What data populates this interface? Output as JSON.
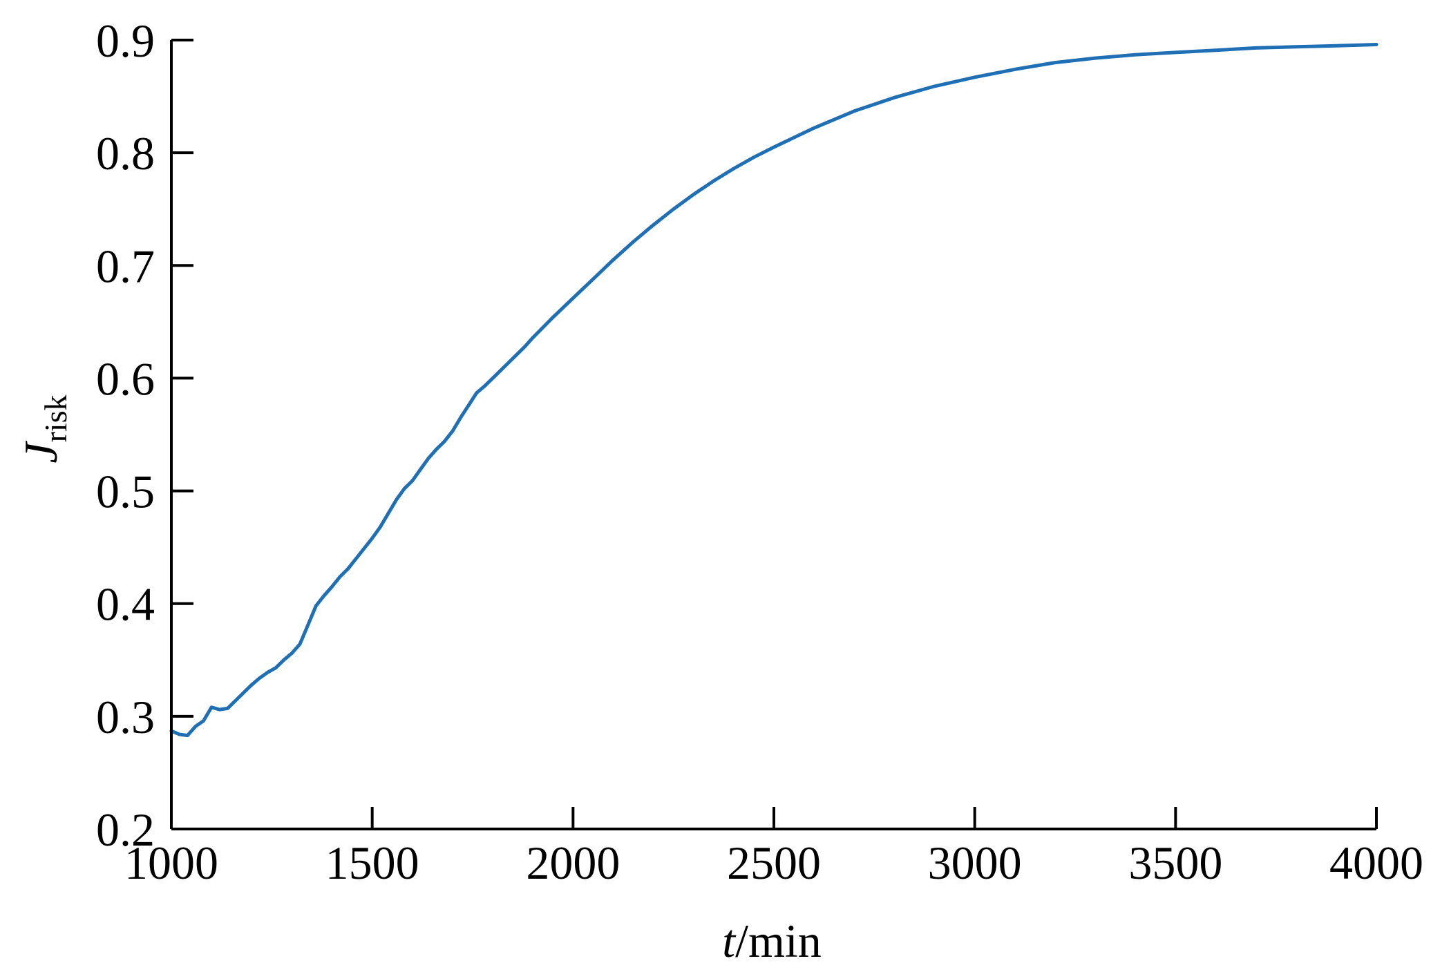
{
  "chart_data": {
    "type": "line",
    "xlabel": {
      "italic": "t",
      "rest": "/min"
    },
    "ylabel": {
      "italic": "J",
      "sub": "risk"
    },
    "xlim": [
      1000,
      4000
    ],
    "ylim": [
      0.2,
      0.9
    ],
    "x_ticks": [
      1000,
      1500,
      2000,
      2500,
      3000,
      3500,
      4000
    ],
    "x_tick_labels": [
      "1000",
      "1500",
      "2000",
      "2500",
      "3000",
      "3500",
      "4000"
    ],
    "y_ticks": [
      0.2,
      0.3,
      0.4,
      0.5,
      0.6,
      0.7,
      0.8,
      0.9
    ],
    "y_tick_labels": [
      "0.2",
      "0.3",
      "0.4",
      "0.5",
      "0.6",
      "0.7",
      "0.8",
      "0.9"
    ],
    "grid": false,
    "legend": "none",
    "series": [
      {
        "color": "#1f6fb5",
        "x": [
          1000,
          1020,
          1040,
          1060,
          1080,
          1100,
          1120,
          1140,
          1160,
          1180,
          1200,
          1220,
          1240,
          1260,
          1280,
          1300,
          1320,
          1340,
          1360,
          1380,
          1400,
          1420,
          1440,
          1460,
          1480,
          1500,
          1520,
          1540,
          1560,
          1580,
          1600,
          1620,
          1640,
          1660,
          1680,
          1700,
          1720,
          1740,
          1760,
          1780,
          1800,
          1820,
          1840,
          1860,
          1880,
          1900,
          1950,
          2000,
          2050,
          2100,
          2150,
          2200,
          2250,
          2300,
          2350,
          2400,
          2450,
          2500,
          2600,
          2700,
          2800,
          2900,
          3000,
          3100,
          3200,
          3300,
          3400,
          3500,
          3600,
          3700,
          3800,
          3900,
          4000
        ],
        "y": [
          0.287,
          0.284,
          0.283,
          0.291,
          0.296,
          0.308,
          0.306,
          0.307,
          0.314,
          0.321,
          0.328,
          0.334,
          0.339,
          0.343,
          0.35,
          0.356,
          0.364,
          0.381,
          0.398,
          0.407,
          0.415,
          0.424,
          0.431,
          0.44,
          0.449,
          0.458,
          0.468,
          0.48,
          0.492,
          0.502,
          0.509,
          0.519,
          0.529,
          0.537,
          0.544,
          0.553,
          0.565,
          0.576,
          0.587,
          0.593,
          0.6,
          0.607,
          0.614,
          0.621,
          0.628,
          0.636,
          0.654,
          0.671,
          0.688,
          0.705,
          0.721,
          0.736,
          0.75,
          0.763,
          0.775,
          0.786,
          0.796,
          0.805,
          0.822,
          0.837,
          0.849,
          0.859,
          0.867,
          0.874,
          0.88,
          0.884,
          0.887,
          0.889,
          0.891,
          0.893,
          0.894,
          0.895,
          0.896
        ]
      }
    ]
  }
}
